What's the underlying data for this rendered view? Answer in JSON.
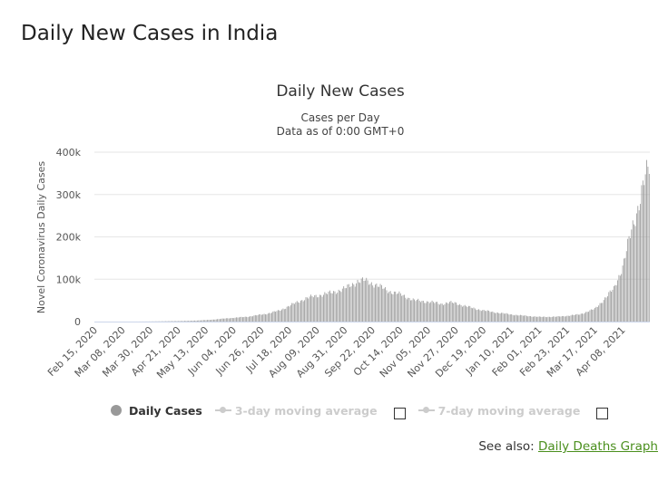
{
  "page": {
    "title": "Daily New Cases in India"
  },
  "see_also": {
    "prefix": "See also:",
    "link_label": "Daily Deaths Graph"
  },
  "legend": {
    "daily": "Daily Cases",
    "ma3": "3-day moving average",
    "ma7": "7-day moving average"
  },
  "chart_data": {
    "type": "bar",
    "title": "Daily New Cases",
    "subtitle_line1": "Cases per Day",
    "subtitle_line2": "Data as of 0:00 GMT+0",
    "ylabel": "Novel Coronavirus Daily Cases",
    "xlabel": "",
    "start_date": "2020-02-15",
    "end_date": "2021-04-29",
    "ylim": [
      0,
      400000
    ],
    "yticks": [
      0,
      100000,
      200000,
      300000,
      400000
    ],
    "ytick_labels": [
      "0",
      "100k",
      "200k",
      "300k",
      "400k"
    ],
    "xtick_labels": [
      "Feb 15, 2020",
      "Mar 08, 2020",
      "Mar 30, 2020",
      "Apr 21, 2020",
      "May 13, 2020",
      "Jun 04, 2020",
      "Jun 26, 2020",
      "Jul 18, 2020",
      "Aug 09, 2020",
      "Aug 31, 2020",
      "Sep 22, 2020",
      "Oct 14, 2020",
      "Nov 05, 2020",
      "Nov 27, 2020",
      "Dec 19, 2020",
      "Jan 10, 2021",
      "Feb 01, 2021",
      "Feb 23, 2021",
      "Mar 17, 2021",
      "Apr 08, 2021"
    ],
    "grid": true,
    "legend_position": "bottom",
    "bar_color": "#999999",
    "series": [
      {
        "name": "Daily Cases",
        "points": [
          [
            "2020-02-15",
            0
          ],
          [
            "2020-03-08",
            10
          ],
          [
            "2020-03-20",
            60
          ],
          [
            "2020-03-31",
            300
          ],
          [
            "2020-04-15",
            1000
          ],
          [
            "2020-04-30",
            1800
          ],
          [
            "2020-05-15",
            3800
          ],
          [
            "2020-05-31",
            8000
          ],
          [
            "2020-06-15",
            11500
          ],
          [
            "2020-06-30",
            18500
          ],
          [
            "2020-07-10",
            26000
          ],
          [
            "2020-07-20",
            40000
          ],
          [
            "2020-07-31",
            55000
          ],
          [
            "2020-08-10",
            62000
          ],
          [
            "2020-08-20",
            68000
          ],
          [
            "2020-08-31",
            78000
          ],
          [
            "2020-09-10",
            95000
          ],
          [
            "2020-09-16",
            97000
          ],
          [
            "2020-09-25",
            86000
          ],
          [
            "2020-10-05",
            72000
          ],
          [
            "2020-10-15",
            63000
          ],
          [
            "2020-10-25",
            50000
          ],
          [
            "2020-11-05",
            47000
          ],
          [
            "2020-11-15",
            42000
          ],
          [
            "2020-11-22",
            45000
          ],
          [
            "2020-11-27",
            43000
          ],
          [
            "2020-12-10",
            32000
          ],
          [
            "2020-12-19",
            26000
          ],
          [
            "2021-01-01",
            20000
          ],
          [
            "2021-01-15",
            15000
          ],
          [
            "2021-02-01",
            11000
          ],
          [
            "2021-02-15",
            11500
          ],
          [
            "2021-02-23",
            13500
          ],
          [
            "2021-03-05",
            17000
          ],
          [
            "2021-03-17",
            30000
          ],
          [
            "2021-03-25",
            55000
          ],
          [
            "2021-04-01",
            78000
          ],
          [
            "2021-04-08",
            130000
          ],
          [
            "2021-04-15",
            215000
          ],
          [
            "2021-04-20",
            270000
          ],
          [
            "2021-04-25",
            330000
          ],
          [
            "2021-04-29",
            365000
          ]
        ]
      }
    ]
  }
}
